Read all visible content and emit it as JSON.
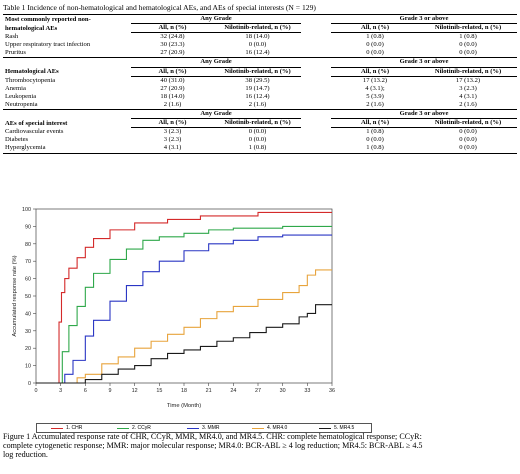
{
  "table": {
    "caption": "Table 1 Incidence of non-hematological and hematological AEs, and AEs of special interests (N = 129)",
    "group_any": "Any Grade",
    "group_g3": "Grade 3 or above",
    "col_all": "All, n (%)",
    "col_nilo": "Nilotinib-related, n (%)",
    "sections": [
      {
        "title_lines": [
          "Most commonly reported non-",
          "hematological AEs"
        ],
        "rows": [
          [
            "Rash",
            "32 (24.8)",
            "18 (14.0)",
            "1 (0.8)",
            "1 (0.8)"
          ],
          [
            "Upper respiratory tract infection",
            "30 (23.3)",
            "0 (0.0)",
            "0 (0.0)",
            "0 (0.0)"
          ],
          [
            "Pruritus",
            "27 (20.9)",
            "16 (12.4)",
            "0 (0.0)",
            "0 (0.0)"
          ]
        ]
      },
      {
        "title_lines": [
          "Hematological AEs"
        ],
        "rows": [
          [
            "Thrombocytopenia",
            "40 (31.0)",
            "38 (29.5)",
            "17 (13.2)",
            "17 (13.2)"
          ],
          [
            "Anemia",
            "27 (20.9)",
            "19 (14.7)",
            "4 (3.1);",
            "3 (2.3)"
          ],
          [
            "Leukopenia",
            "18 (14.0)",
            "16 (12.4)",
            "5 (3.9)",
            "4 (3.1)"
          ],
          [
            "Neutropenia",
            "2 (1.6)",
            "2 (1.6)",
            "2 (1.6)",
            "2 (1.6)"
          ]
        ]
      },
      {
        "title_lines": [
          "AEs of special interest"
        ],
        "rows": [
          [
            "Cardiovascular events",
            "3 (2.3)",
            "0 (0.0)",
            "1 (0.8)",
            "0 (0.0)"
          ],
          [
            "Diabetes",
            "3 (2.3)",
            "0 (0.0)",
            "0 (0.0)",
            "0 (0.0)"
          ],
          [
            "Hyperglycemia",
            "4 (3.1)",
            "1 (0.8)",
            "1 (0.8)",
            "0 (0.0)"
          ]
        ]
      }
    ]
  },
  "chart_data": {
    "type": "line",
    "xlabel": "Time (Month)",
    "ylabel": "Accumulated response rate (%)",
    "xlim": [
      0,
      36
    ],
    "ylim": [
      0,
      100
    ],
    "xticks": [
      0,
      3,
      6,
      9,
      12,
      15,
      18,
      21,
      24,
      27,
      30,
      33,
      36
    ],
    "yticks": [
      0,
      10,
      20,
      30,
      40,
      50,
      60,
      70,
      80,
      90,
      100
    ],
    "series": [
      {
        "name": "1. CHR",
        "color": "#d42a2a",
        "x": [
          0,
          2.4,
          2.8,
          3.1,
          3.5,
          4,
          5,
          6,
          7,
          9,
          12,
          16,
          20,
          27,
          36
        ],
        "y": [
          0,
          0,
          35,
          52,
          60,
          66,
          72,
          78,
          83,
          88,
          92,
          94,
          96,
          98,
          98
        ]
      },
      {
        "name": "2. CCyR",
        "color": "#2fa84a",
        "x": [
          0,
          2.8,
          3.2,
          4,
          5,
          6,
          7,
          9,
          11,
          13,
          15,
          18,
          21,
          24,
          30,
          36
        ],
        "y": [
          0,
          0,
          18,
          33,
          44,
          55,
          63,
          71,
          77,
          82,
          84,
          86,
          88,
          89,
          90,
          90
        ]
      },
      {
        "name": "3. MMR",
        "color": "#2a36c4",
        "x": [
          0,
          3,
          3.5,
          4.5,
          6,
          7,
          9,
          11,
          13,
          15,
          18,
          21,
          24,
          27,
          30,
          33,
          36
        ],
        "y": [
          0,
          0,
          5,
          13,
          27,
          36,
          47,
          56,
          64,
          70,
          76,
          80,
          82,
          84,
          85,
          85,
          85
        ]
      },
      {
        "name": "4. MR4.0",
        "color": "#e8a43c",
        "x": [
          0,
          3,
          5,
          6,
          8,
          10,
          12,
          14,
          16,
          18,
          20,
          22,
          24,
          27,
          30,
          32,
          33,
          34,
          36
        ],
        "y": [
          0,
          0,
          3,
          5,
          11,
          15,
          20,
          24,
          28,
          32,
          37,
          41,
          44,
          48,
          52,
          56,
          62,
          65,
          65
        ]
      },
      {
        "name": "5. MR4.5",
        "color": "#1a1a1a",
        "x": [
          0,
          3,
          6,
          8,
          10,
          12,
          14,
          16,
          18,
          20,
          22,
          24,
          26,
          28,
          30,
          32,
          33,
          34,
          36
        ],
        "y": [
          0,
          0,
          2,
          5,
          8,
          10,
          14,
          17,
          19,
          21,
          24,
          26,
          29,
          32,
          34,
          38,
          40,
          45,
          45
        ]
      }
    ]
  },
  "figure_caption": "Figure 1 Accumulated response rate of CHR, CCyR, MMR, MR4.0, and MR4.5. CHR: complete hematological response; CCyR: complete cytogenetic response; MMR: major molecular response; MR4.0: BCR-ABL ≥ 4 log reduction; MR4.5: BCR-ABL ≥ 4.5 log reduction."
}
